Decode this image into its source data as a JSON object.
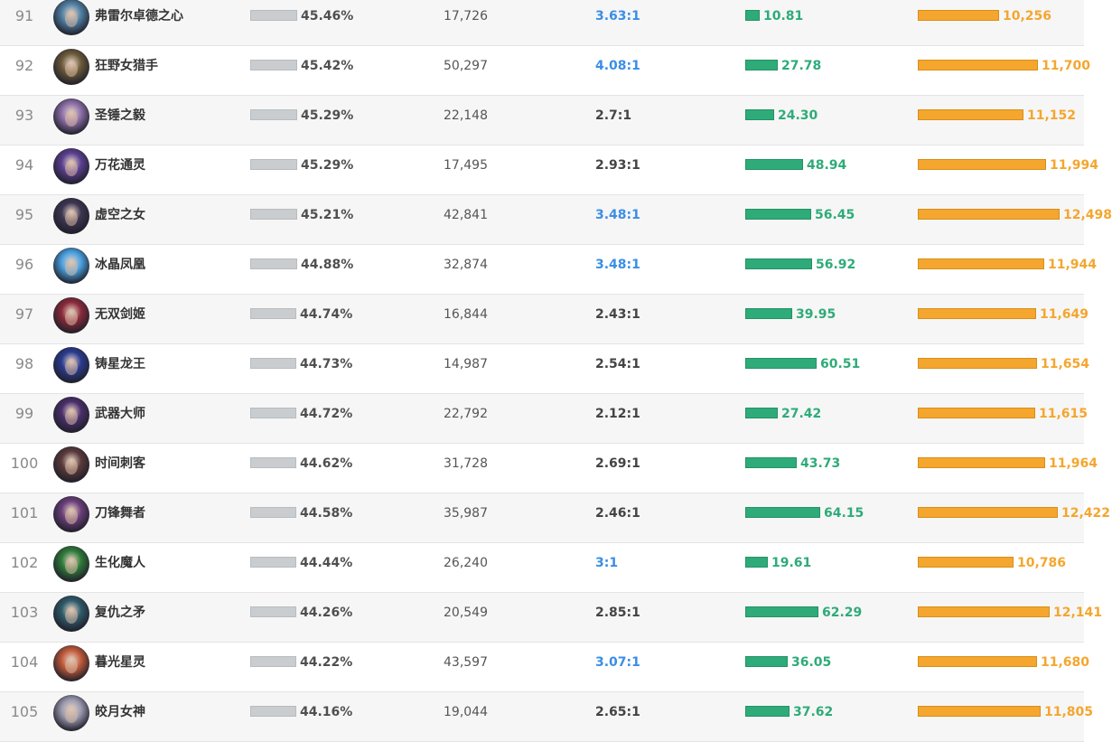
{
  "colors": {
    "ratio_high": "#3a8ee6",
    "ratio_normal": "#444444",
    "kda_bar": "#2eab78",
    "gold_bar": "#f4a62e",
    "win_bar": "#c9cdcf"
  },
  "rows": [
    {
      "rank": "91",
      "name": "弗雷尔卓德之心",
      "win_rate": "45.46%",
      "win_fill": 0.4546,
      "games": "17,726",
      "ratio": "3.63:1",
      "ratio_high": true,
      "kda": "10.81",
      "gold": "10,256",
      "avatar_color": "#4f7fa3"
    },
    {
      "rank": "92",
      "name": "狂野女猎手",
      "win_rate": "45.42%",
      "win_fill": 0.4542,
      "games": "50,297",
      "ratio": "4.08:1",
      "ratio_high": true,
      "kda": "27.78",
      "gold": "11,700",
      "avatar_color": "#6b5a3a"
    },
    {
      "rank": "93",
      "name": "圣锤之毅",
      "win_rate": "45.29%",
      "win_fill": 0.4529,
      "games": "22,148",
      "ratio": "2.7:1",
      "ratio_high": false,
      "kda": "24.30",
      "gold": "11,152",
      "avatar_color": "#8c6fa8"
    },
    {
      "rank": "94",
      "name": "万花通灵",
      "win_rate": "45.29%",
      "win_fill": 0.4529,
      "games": "17,495",
      "ratio": "2.93:1",
      "ratio_high": false,
      "kda": "48.94",
      "gold": "11,994",
      "avatar_color": "#5a3f8f"
    },
    {
      "rank": "95",
      "name": "虚空之女",
      "win_rate": "45.21%",
      "win_fill": 0.4521,
      "games": "42,841",
      "ratio": "3.48:1",
      "ratio_high": true,
      "kda": "56.45",
      "gold": "12,498",
      "avatar_color": "#3c3550"
    },
    {
      "rank": "96",
      "name": "冰晶凤凰",
      "win_rate": "44.88%",
      "win_fill": 0.4488,
      "games": "32,874",
      "ratio": "3.48:1",
      "ratio_high": true,
      "kda": "56.92",
      "gold": "11,944",
      "avatar_color": "#4aa0e0"
    },
    {
      "rank": "97",
      "name": "无双剑姬",
      "win_rate": "44.74%",
      "win_fill": 0.4474,
      "games": "16,844",
      "ratio": "2.43:1",
      "ratio_high": false,
      "kda": "39.95",
      "gold": "11,649",
      "avatar_color": "#8a2a3a"
    },
    {
      "rank": "98",
      "name": "铸星龙王",
      "win_rate": "44.73%",
      "win_fill": 0.4473,
      "games": "14,987",
      "ratio": "2.54:1",
      "ratio_high": false,
      "kda": "60.51",
      "gold": "11,654",
      "avatar_color": "#2a3b8f"
    },
    {
      "rank": "99",
      "name": "武器大师",
      "win_rate": "44.72%",
      "win_fill": 0.4472,
      "games": "22,792",
      "ratio": "2.12:1",
      "ratio_high": false,
      "kda": "27.42",
      "gold": "11,615",
      "avatar_color": "#4a2f6b"
    },
    {
      "rank": "100",
      "name": "时间刺客",
      "win_rate": "44.62%",
      "win_fill": 0.4462,
      "games": "31,728",
      "ratio": "2.69:1",
      "ratio_high": false,
      "kda": "43.73",
      "gold": "11,964",
      "avatar_color": "#5a3a3a"
    },
    {
      "rank": "101",
      "name": "刀锋舞者",
      "win_rate": "44.58%",
      "win_fill": 0.4458,
      "games": "35,987",
      "ratio": "2.46:1",
      "ratio_high": false,
      "kda": "64.15",
      "gold": "12,422",
      "avatar_color": "#6a3f7a"
    },
    {
      "rank": "102",
      "name": "生化魔人",
      "win_rate": "44.44%",
      "win_fill": 0.4444,
      "games": "26,240",
      "ratio": "3:1",
      "ratio_high": true,
      "kda": "19.61",
      "gold": "10,786",
      "avatar_color": "#2f7a3a"
    },
    {
      "rank": "103",
      "name": "复仇之矛",
      "win_rate": "44.26%",
      "win_fill": 0.4426,
      "games": "20,549",
      "ratio": "2.85:1",
      "ratio_high": false,
      "kda": "62.29",
      "gold": "12,141",
      "avatar_color": "#2f5a6a"
    },
    {
      "rank": "104",
      "name": "暮光星灵",
      "win_rate": "44.22%",
      "win_fill": 0.4422,
      "games": "43,597",
      "ratio": "3.07:1",
      "ratio_high": true,
      "kda": "36.05",
      "gold": "11,680",
      "avatar_color": "#c05a3a"
    },
    {
      "rank": "105",
      "name": "皎月女神",
      "win_rate": "44.16%",
      "win_fill": 0.4416,
      "games": "19,044",
      "ratio": "2.65:1",
      "ratio_high": false,
      "kda": "37.62",
      "gold": "11,805",
      "avatar_color": "#9a9ab0"
    }
  ]
}
